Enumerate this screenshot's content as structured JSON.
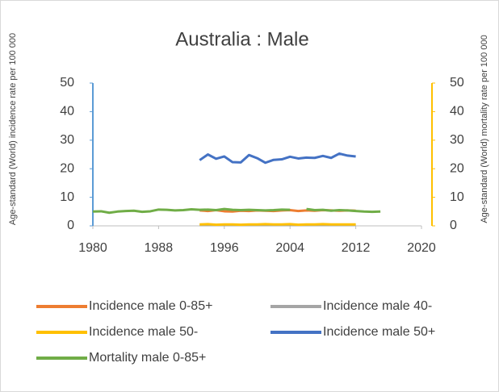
{
  "chart_data": {
    "type": "line",
    "title": "Australia : Male",
    "y_label": "Age-standard (World) incidence rate per 100 000",
    "y2_label": "Age-standard (World) mortality rate per 100 000",
    "x": [
      1980,
      1981,
      1982,
      1983,
      1984,
      1985,
      1986,
      1987,
      1988,
      1989,
      1990,
      1991,
      1992,
      1993,
      1994,
      1995,
      1996,
      1997,
      1998,
      1999,
      2000,
      2001,
      2002,
      2003,
      2004,
      2005,
      2006,
      2007,
      2008,
      2009,
      2010,
      2011,
      2012,
      2013,
      2014,
      2015
    ],
    "xlim": [
      1980,
      2020
    ],
    "xticks": [
      1980,
      1988,
      1996,
      2004,
      2012,
      2020
    ],
    "ylim": [
      0,
      50
    ],
    "yticks": [
      0,
      10,
      20,
      30,
      40,
      50
    ],
    "y2lim": [
      0,
      50
    ],
    "y2ticks": [
      0,
      10,
      20,
      30,
      40,
      50
    ],
    "y_axis_color": "#5b9bd5",
    "y2_axis_color": "#ffc000",
    "series": [
      {
        "name": "Incidence male 0-85+",
        "color": "#ed7d31",
        "values": [
          null,
          null,
          null,
          null,
          null,
          null,
          null,
          null,
          null,
          null,
          null,
          null,
          null,
          5.4,
          5.2,
          5.5,
          5.1,
          5.0,
          5.3,
          5.2,
          5.4,
          5.3,
          5.2,
          5.4,
          5.5,
          5.2,
          5.4,
          5.3,
          5.5,
          5.4,
          5.3,
          5.4,
          5.3,
          null,
          null,
          null
        ]
      },
      {
        "name": "Incidence male 40-",
        "color": "#a5a5a5",
        "values": [
          null,
          null,
          null,
          null,
          null,
          null,
          null,
          null,
          null,
          null,
          null,
          null,
          null,
          0.3,
          0.3,
          0.3,
          0.3,
          0.3,
          0.3,
          0.3,
          0.3,
          0.3,
          0.3,
          0.3,
          0.3,
          0.3,
          0.3,
          0.3,
          0.3,
          0.3,
          0.3,
          0.3,
          0.3,
          null,
          null,
          null
        ]
      },
      {
        "name": "Incidence male 50-",
        "color": "#ffc000",
        "values": [
          null,
          null,
          null,
          null,
          null,
          null,
          null,
          null,
          null,
          null,
          null,
          null,
          null,
          0.5,
          0.6,
          0.4,
          0.5,
          0.5,
          0.4,
          0.5,
          0.5,
          0.6,
          0.5,
          0.5,
          0.6,
          0.4,
          0.5,
          0.5,
          0.6,
          0.5,
          0.5,
          0.5,
          0.5,
          null,
          null,
          null
        ]
      },
      {
        "name": "Incidence male 50+",
        "color": "#4472c4",
        "values": [
          null,
          null,
          null,
          null,
          null,
          null,
          null,
          null,
          null,
          null,
          null,
          null,
          null,
          23,
          25,
          23.5,
          24.3,
          22.3,
          22.2,
          24.8,
          23.7,
          22.1,
          23.1,
          23.3,
          24.2,
          23.6,
          23.9,
          23.8,
          24.5,
          23.8,
          25.3,
          24.6,
          24.3,
          null,
          null,
          null
        ]
      },
      {
        "name": "Mortality male 0-85+",
        "color": "#70ad47",
        "axis": "y2",
        "values": [
          5.0,
          5.1,
          4.6,
          5.0,
          5.2,
          5.3,
          4.9,
          5.1,
          5.7,
          5.6,
          5.4,
          5.5,
          5.8,
          5.6,
          5.7,
          5.5,
          5.9,
          5.6,
          5.5,
          5.6,
          5.5,
          5.4,
          5.5,
          5.7,
          5.6,
          null,
          5.9,
          5.5,
          5.6,
          5.3,
          5.5,
          5.4,
          5.2,
          5.0,
          4.9,
          5.0
        ]
      }
    ]
  }
}
